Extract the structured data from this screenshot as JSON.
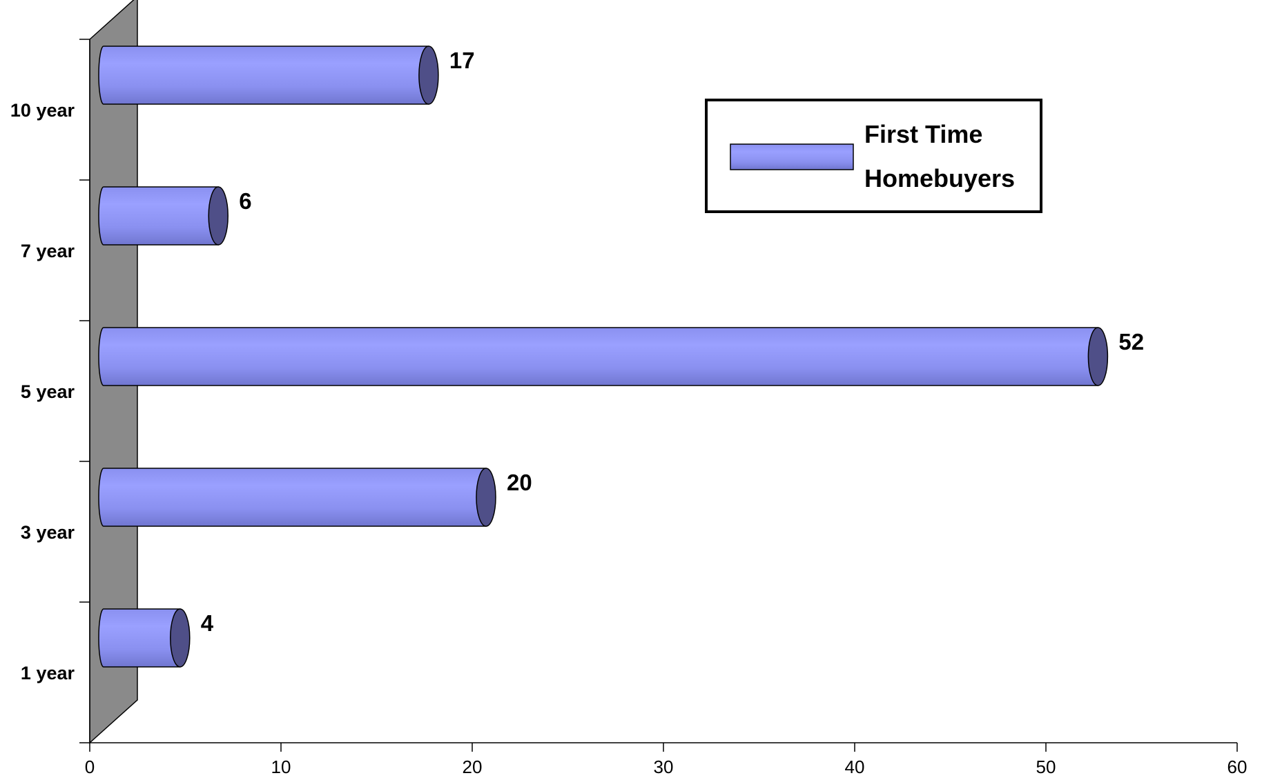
{
  "chart_data": {
    "type": "bar",
    "orientation": "horizontal",
    "categories": [
      "10 year",
      "7 year",
      "5 year",
      "3 year",
      "1 year"
    ],
    "series": [
      {
        "name": "First Time Homebuyers",
        "values": [
          17,
          6,
          52,
          20,
          4
        ]
      }
    ],
    "data_labels": [
      "17",
      "6",
      "52",
      "20",
      "4"
    ],
    "legend": {
      "label_lines": [
        "First Time",
        "Homebuyers"
      ],
      "position": "top-right"
    },
    "xlim": [
      0,
      60
    ],
    "x_ticks": [
      0,
      10,
      20,
      30,
      40,
      50,
      60
    ],
    "x_tick_labels": [
      "0",
      "10",
      "20",
      "30",
      "40",
      "50",
      "60"
    ],
    "grid": false,
    "style": "3d-cylinder",
    "colors": {
      "bar_light": "#9aa0ff",
      "bar_mid": "#8a90f0",
      "bar_dark": "#7076d0",
      "bar_cap": "#4f4f88",
      "wall": "#8a8a8a"
    }
  }
}
